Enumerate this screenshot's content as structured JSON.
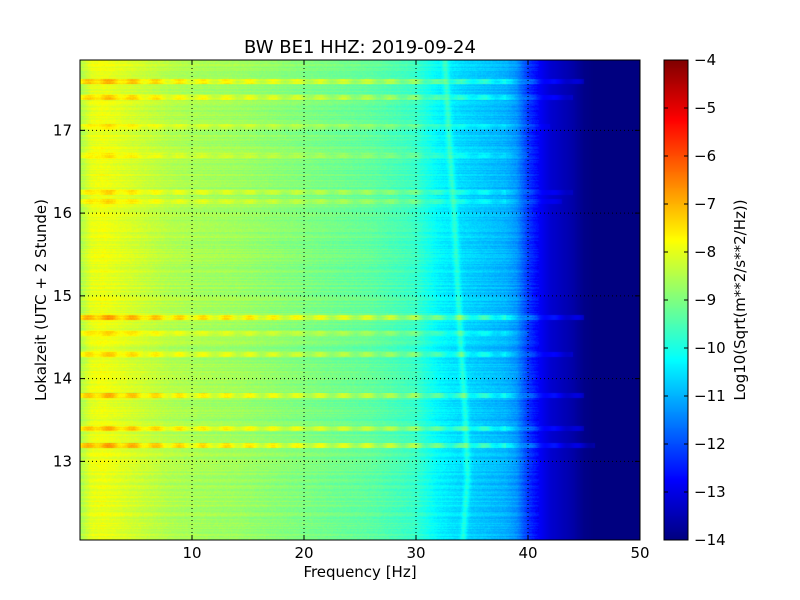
{
  "chart_data": {
    "type": "heatmap",
    "title": "BW BE1 HHZ: 2019-09-24",
    "xlabel": "Frequency [Hz]",
    "ylabel": "Lokalzeit (UTC + 2 Stunde)",
    "xlim": [
      0,
      50
    ],
    "ylim": [
      17.85,
      12.05
    ],
    "x_ticks": [
      10,
      20,
      30,
      40,
      50
    ],
    "y_ticks": [
      13,
      14,
      15,
      16,
      17
    ],
    "grid": true,
    "colormap": "jet",
    "colorbar": {
      "label": "Log10(Sqrt(m**2/s**2/Hz))",
      "min": -14,
      "max": -4,
      "ticks": [
        -4,
        -5,
        -6,
        -7,
        -8,
        -9,
        -10,
        -11,
        -12,
        -13,
        -14
      ]
    },
    "spectral_profile": {
      "frequency_hz": [
        0,
        0.5,
        1,
        2,
        3,
        4,
        6,
        8,
        10,
        14,
        18,
        22,
        26,
        28,
        30,
        31,
        32,
        34,
        36,
        38,
        39,
        40,
        41,
        42,
        44,
        45,
        46,
        48,
        50
      ],
      "log10_amplitude": [
        -8.6,
        -8.3,
        -8.0,
        -7.9,
        -8.0,
        -8.1,
        -8.3,
        -8.5,
        -8.6,
        -8.7,
        -8.9,
        -9.1,
        -9.3,
        -9.5,
        -9.7,
        -10.0,
        -10.3,
        -10.6,
        -10.8,
        -11.0,
        -11.3,
        -12.2,
        -12.8,
        -13.2,
        -13.6,
        -13.9,
        -14.0,
        -14.0,
        -14.0
      ]
    },
    "band_freq_hz": [
      34.2,
      34.6,
      34.4,
      34.0,
      33.7,
      33.4,
      33.0,
      32.6
    ],
    "band_times": [
      12.05,
      12.8,
      13.6,
      14.4,
      15.2,
      16.0,
      16.8,
      17.85
    ],
    "line_events": [
      {
        "time": 13.2,
        "log10_offset": 1.2,
        "f_max_hz": 46
      },
      {
        "time": 13.4,
        "log10_offset": 1.0,
        "f_max_hz": 45
      },
      {
        "time": 13.8,
        "log10_offset": 1.1,
        "f_max_hz": 45
      },
      {
        "time": 14.3,
        "log10_offset": 0.9,
        "f_max_hz": 44
      },
      {
        "time": 14.55,
        "log10_offset": 0.6,
        "f_max_hz": 40
      },
      {
        "time": 14.75,
        "log10_offset": 1.2,
        "f_max_hz": 45
      },
      {
        "time": 16.15,
        "log10_offset": 0.6,
        "f_max_hz": 43
      },
      {
        "time": 16.25,
        "log10_offset": 0.7,
        "f_max_hz": 44
      },
      {
        "time": 16.7,
        "log10_offset": 0.5,
        "f_max_hz": 40
      },
      {
        "time": 17.05,
        "log10_offset": 0.5,
        "f_max_hz": 42
      },
      {
        "time": 17.4,
        "log10_offset": 0.9,
        "f_max_hz": 44
      },
      {
        "time": 17.6,
        "log10_offset": 1.0,
        "f_max_hz": 45
      }
    ]
  }
}
